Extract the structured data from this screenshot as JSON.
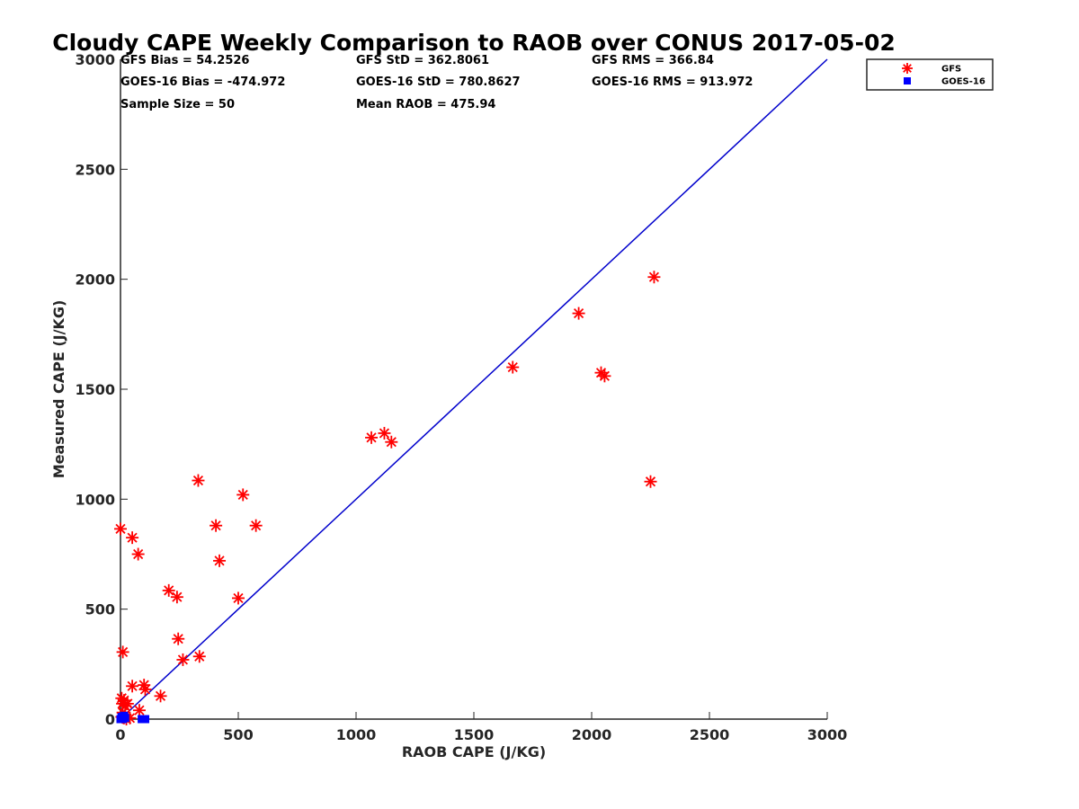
{
  "chart_data": {
    "type": "scatter",
    "title": "Cloudy CAPE Weekly Comparison to RAOB over CONUS 2017-05-02",
    "xlabel": "RAOB CAPE (J/KG)",
    "ylabel": "Measured CAPE (J/KG)",
    "xlim": [
      0,
      3000
    ],
    "ylim": [
      0,
      3000
    ],
    "xticks": [
      "0",
      "500",
      "1000",
      "1500",
      "2000",
      "2500",
      "3000"
    ],
    "yticks": [
      "0",
      "500",
      "1000",
      "1500",
      "2000",
      "2500",
      "3000"
    ],
    "grid": false,
    "legend_position": "top-right",
    "stats": [
      "GFS Bias = 54.2526",
      "GFS StD = 362.8061",
      "GFS RMS = 366.84",
      "GOES-16 Bias = -474.972",
      "GOES-16 StD = 780.8627",
      "GOES-16 RMS = 913.972",
      "Sample Size = 50",
      "Mean RAOB = 475.94"
    ],
    "reference_line": {
      "x": [
        0,
        3000
      ],
      "y": [
        0,
        3000
      ],
      "color": "#0000cc"
    },
    "series": [
      {
        "name": "GFS",
        "marker": "asterisk",
        "color": "#ff0000",
        "x": [
          0,
          10,
          5,
          8,
          15,
          20,
          30,
          5,
          10,
          15,
          20,
          25,
          40,
          50,
          80,
          100,
          105,
          170,
          205,
          240,
          245,
          265,
          335,
          330,
          405,
          420,
          500,
          520,
          575,
          50,
          75,
          1065,
          1120,
          1150,
          1665,
          1945,
          2040,
          2055,
          2265,
          2250
        ],
        "y": [
          865,
          305,
          95,
          70,
          85,
          60,
          70,
          10,
          30,
          5,
          20,
          0,
          5,
          150,
          40,
          155,
          135,
          105,
          585,
          555,
          365,
          270,
          285,
          1085,
          880,
          720,
          550,
          1020,
          880,
          825,
          750,
          1280,
          1300,
          1260,
          1600,
          1845,
          1575,
          1560,
          2010,
          1080
        ]
      },
      {
        "name": "GOES-16",
        "marker": "square",
        "color": "#0000ff",
        "x": [
          0,
          5,
          10,
          15,
          20,
          90,
          100,
          105,
          5,
          12
        ],
        "y": [
          0,
          10,
          0,
          15,
          5,
          0,
          0,
          0,
          5,
          10
        ]
      }
    ]
  }
}
